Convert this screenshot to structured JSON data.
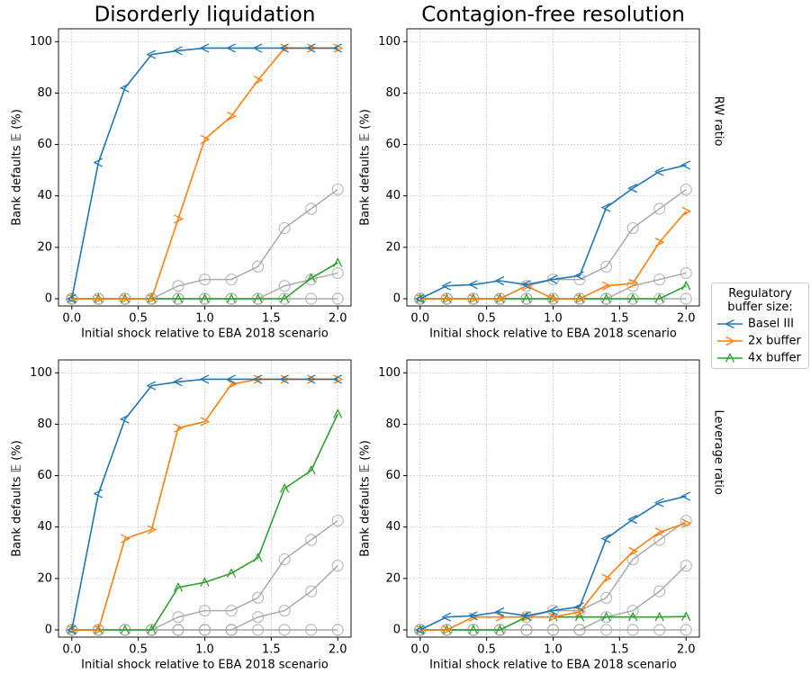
{
  "chart_data": [
    {
      "type": "line",
      "title": "Disorderly liquidation",
      "xlabel": "Initial shock relative to EBA 2018 scenario",
      "ylabel": "Bank defaults 𝔼 (%)",
      "x": [
        0,
        0.2,
        0.4,
        0.6,
        0.8,
        1.0,
        1.2,
        1.4,
        1.6,
        1.8,
        2.0
      ],
      "xlim": [
        -0.1,
        2.1
      ],
      "ylim": [
        -2.8,
        105
      ],
      "xticks": [
        {
          "value": 0,
          "label": "0.0"
        },
        0.5,
        {
          "value": 1,
          "label": "1.0"
        },
        1.5,
        {
          "value": 2,
          "label": "2.0"
        }
      ],
      "yticks": [
        0,
        20,
        40,
        60,
        80,
        100
      ],
      "grid": true,
      "series": [
        {
          "name": "Basel III",
          "color": "#1f77b4",
          "marker": "tri_left",
          "values": [
            0,
            53,
            82,
            95,
            96.5,
            97.5,
            97.5,
            97.5,
            97.5,
            97.5,
            97.5
          ]
        },
        {
          "name": "2x buffer",
          "color": "#ff7f0e",
          "marker": "tri_right",
          "values": [
            0,
            0,
            0,
            0,
            31,
            62,
            71,
            85,
            97.5,
            97.5,
            97.5
          ]
        },
        {
          "name": "4x buffer",
          "color": "#2ca02c",
          "marker": "tri_up",
          "values": [
            0,
            0,
            0,
            0,
            0,
            0,
            0,
            0,
            0,
            8,
            14
          ]
        },
        {
          "color": "#aaaaaa",
          "marker": "circle",
          "values": [
            0,
            0,
            0,
            0,
            5,
            7.5,
            7.5,
            12.5,
            27.5,
            35,
            42.5
          ]
        },
        {
          "color": "#aaaaaa",
          "marker": "circle",
          "values": [
            0,
            0,
            0,
            0,
            0,
            0,
            0,
            0,
            5,
            7.5,
            10
          ]
        },
        {
          "color": "#aaaaaa",
          "marker": "circle",
          "values": [
            0,
            0,
            0,
            0,
            0,
            0,
            0,
            0,
            0,
            0,
            0
          ]
        }
      ]
    },
    {
      "type": "line",
      "title": "Contagion-free resolution",
      "row_label": "RW ratio",
      "xlabel": "Initial shock relative to EBA 2018 scenario",
      "ylabel": "Bank defaults 𝔼 (%)",
      "x": [
        0,
        0.2,
        0.4,
        0.6,
        0.8,
        1.0,
        1.2,
        1.4,
        1.6,
        1.8,
        2.0
      ],
      "xlim": [
        -0.1,
        2.1
      ],
      "ylim": [
        -2.8,
        105
      ],
      "xticks": [
        {
          "value": 0,
          "label": "0.0"
        },
        0.5,
        {
          "value": 1,
          "label": "1.0"
        },
        1.5,
        {
          "value": 2,
          "label": "2.0"
        }
      ],
      "yticks": [
        0,
        20,
        40,
        60,
        80,
        100
      ],
      "grid": true,
      "series": [
        {
          "name": "Basel III",
          "color": "#1f77b4",
          "marker": "tri_left",
          "values": [
            0,
            5,
            5.5,
            7,
            5.5,
            7.5,
            9,
            35.5,
            43,
            49.5,
            52
          ]
        },
        {
          "name": "2x buffer",
          "color": "#ff7f0e",
          "marker": "tri_right",
          "values": [
            0,
            0,
            0,
            0,
            5,
            0,
            0,
            5,
            6,
            22,
            34
          ]
        },
        {
          "name": "4x buffer",
          "color": "#2ca02c",
          "marker": "tri_up",
          "values": [
            0,
            0,
            0,
            0,
            0,
            0,
            0,
            0,
            0,
            0,
            5
          ]
        },
        {
          "color": "#aaaaaa",
          "marker": "circle",
          "values": [
            0,
            0,
            0,
            0,
            5,
            7.5,
            7.5,
            12.5,
            27.5,
            35,
            42.5
          ]
        },
        {
          "color": "#aaaaaa",
          "marker": "circle",
          "values": [
            0,
            0,
            0,
            0,
            0,
            0,
            0,
            0,
            5,
            7.5,
            10
          ]
        },
        {
          "color": "#aaaaaa",
          "marker": "circle",
          "values": [
            0,
            0,
            0,
            0,
            0,
            0,
            0,
            0,
            0,
            0,
            0
          ]
        }
      ]
    },
    {
      "type": "line",
      "xlabel": "Initial shock relative to EBA 2018 scenario",
      "ylabel": "Bank defaults 𝔼 (%)",
      "x": [
        0,
        0.2,
        0.4,
        0.6,
        0.8,
        1.0,
        1.2,
        1.4,
        1.6,
        1.8,
        2.0
      ],
      "xlim": [
        -0.1,
        2.1
      ],
      "ylim": [
        -2.8,
        105
      ],
      "xticks": [
        {
          "value": 0,
          "label": "0.0"
        },
        0.5,
        {
          "value": 1,
          "label": "1.0"
        },
        1.5,
        {
          "value": 2,
          "label": "2.0"
        }
      ],
      "yticks": [
        0,
        20,
        40,
        60,
        80,
        100
      ],
      "grid": true,
      "series": [
        {
          "name": "Basel III",
          "color": "#1f77b4",
          "marker": "tri_left",
          "values": [
            0,
            53,
            82,
            95,
            96.5,
            97.5,
            97.5,
            97.5,
            97.5,
            97.5,
            97.5
          ]
        },
        {
          "name": "2x buffer",
          "color": "#ff7f0e",
          "marker": "tri_right",
          "values": [
            0,
            0,
            35.5,
            39,
            78.5,
            81,
            95.5,
            97.5,
            97.5,
            97.5,
            97.5
          ]
        },
        {
          "name": "4x buffer",
          "color": "#2ca02c",
          "marker": "tri_up",
          "values": [
            0,
            0,
            0,
            0,
            16.5,
            18.5,
            22,
            28,
            55,
            62,
            84
          ]
        },
        {
          "color": "#aaaaaa",
          "marker": "circle",
          "values": [
            0,
            0,
            0,
            0,
            5,
            7.5,
            7.5,
            12.5,
            27.5,
            35,
            42.5
          ]
        },
        {
          "color": "#aaaaaa",
          "marker": "circle",
          "values": [
            0,
            0,
            0,
            0,
            0,
            0,
            0,
            5,
            7.5,
            15,
            25
          ]
        },
        {
          "color": "#aaaaaa",
          "marker": "circle",
          "values": [
            0,
            0,
            0,
            0,
            0,
            0,
            0,
            0,
            0,
            0,
            0
          ]
        }
      ]
    },
    {
      "type": "line",
      "row_label": "Leverage ratio",
      "xlabel": "Initial shock relative to EBA 2018 scenario",
      "ylabel": "Bank defaults 𝔼 (%)",
      "x": [
        0,
        0.2,
        0.4,
        0.6,
        0.8,
        1.0,
        1.2,
        1.4,
        1.6,
        1.8,
        2.0
      ],
      "xlim": [
        -0.1,
        2.1
      ],
      "ylim": [
        -2.8,
        105
      ],
      "xticks": [
        {
          "value": 0,
          "label": "0.0"
        },
        0.5,
        {
          "value": 1,
          "label": "1.0"
        },
        1.5,
        {
          "value": 2,
          "label": "2.0"
        }
      ],
      "yticks": [
        0,
        20,
        40,
        60,
        80,
        100
      ],
      "grid": true,
      "series": [
        {
          "name": "Basel III",
          "color": "#1f77b4",
          "marker": "tri_left",
          "values": [
            0,
            5,
            5.5,
            7,
            5.5,
            7.5,
            9,
            35.5,
            43,
            49.5,
            52
          ]
        },
        {
          "name": "2x buffer",
          "color": "#ff7f0e",
          "marker": "tri_right",
          "values": [
            0,
            0,
            5,
            5,
            5,
            5,
            7,
            20,
            30.5,
            38,
            41.5
          ]
        },
        {
          "name": "4x buffer",
          "color": "#2ca02c",
          "marker": "tri_up",
          "values": [
            0,
            0,
            0,
            0,
            5,
            5,
            5,
            5,
            5,
            5,
            5.2
          ]
        },
        {
          "color": "#aaaaaa",
          "marker": "circle",
          "values": [
            0,
            0,
            0,
            0,
            5,
            7.5,
            7.5,
            12.5,
            27.5,
            35,
            42.5
          ]
        },
        {
          "color": "#aaaaaa",
          "marker": "circle",
          "values": [
            0,
            0,
            0,
            0,
            0,
            0,
            0,
            5,
            7.5,
            15,
            25
          ]
        },
        {
          "color": "#aaaaaa",
          "marker": "circle",
          "values": [
            0,
            0,
            0,
            0,
            0,
            0,
            0,
            0,
            0,
            0,
            0
          ]
        }
      ]
    }
  ],
  "legend": {
    "title": "Regulatory buffer size:",
    "position": "right"
  }
}
